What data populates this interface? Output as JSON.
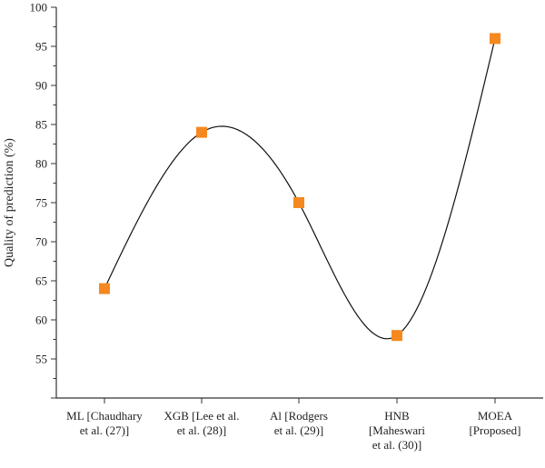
{
  "chart_data": {
    "type": "scatter",
    "title": "",
    "xlabel": "",
    "ylabel": "Quality of prediction (%)",
    "categories": [
      [
        "ML [Chaudhary",
        "et al. (27)]"
      ],
      [
        "XGB [Lee et al.",
        "et al. (28)]"
      ],
      [
        "Al [Rodgers",
        "et al. (29)]"
      ],
      [
        "HNB",
        "[Maheswari",
        "et al. (30)]"
      ],
      [
        "MOEA",
        "[Proposed]"
      ]
    ],
    "series": [
      {
        "values": [
          64,
          84,
          75,
          58,
          96
        ]
      }
    ],
    "ylim": [
      50,
      100
    ],
    "yticks": [
      55,
      60,
      65,
      70,
      75,
      80,
      85,
      90,
      95,
      100
    ],
    "smooth_curve": true,
    "grid": false,
    "colors": {
      "marker": "#f5891f",
      "line": "#111111",
      "axis": "#333333"
    }
  }
}
